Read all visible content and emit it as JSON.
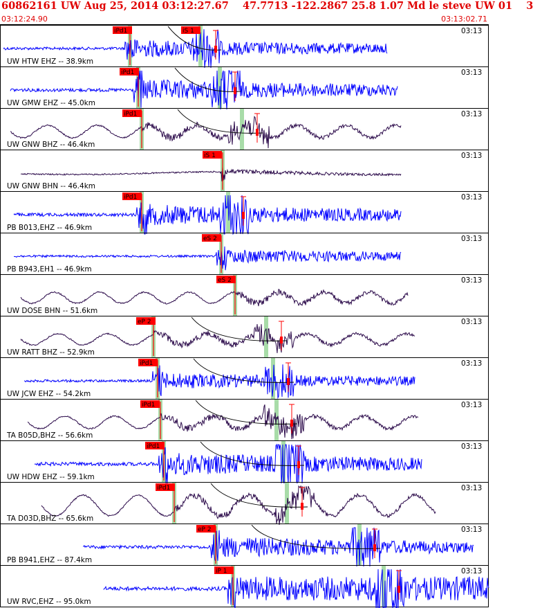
{
  "header": {
    "title": "60862161 UW Aug 25, 2014 03:12:27.67    47.7713 -122.2867 25.8 1.07 Md le steve UW 01    3",
    "start_time": "03:12:24.90",
    "end_time": "03:13:02.71"
  },
  "colors": {
    "header_text": "#e00000",
    "trace_blue": "#0000ff",
    "trace_dark": "#2b0a4a",
    "pick": "#ff0000",
    "window": "#a8dca8",
    "curve": "#000000"
  },
  "chart_data": {
    "type": "line",
    "title": "60862161 UW Aug 25, 2014 03:12:27.67    47.7713 -122.2867 25.8 1.07 Md le steve UW 01    3",
    "x_start": "03:12:24.90",
    "x_end": "03:13:02.71",
    "time_marker": "03:13",
    "traces": [
      {
        "label": "UW HTW EHZ -- 38.9km",
        "color": "blue",
        "pick": "iPd1",
        "s_pick": "iS 1"
      },
      {
        "label": "UW GMW EHZ -- 45.0km",
        "color": "blue",
        "pick": "iPd1",
        "s_pick": ""
      },
      {
        "label": "UW GNW BHZ -- 46.4km",
        "color": "dark",
        "pick": "iPd1",
        "s_pick": ""
      },
      {
        "label": "UW GNW BHN -- 46.4km",
        "color": "dark",
        "pick": "iS 1",
        "s_pick": ""
      },
      {
        "label": "PB B013,EHZ -- 46.9km",
        "color": "blue",
        "pick": "iPd1",
        "s_pick": ""
      },
      {
        "label": "PB B943,EH1 -- 46.9km",
        "color": "blue",
        "pick": "eS 2",
        "s_pick": ""
      },
      {
        "label": "UW DOSE BHN -- 51.6km",
        "color": "dark",
        "pick": "eS 2",
        "s_pick": ""
      },
      {
        "label": "UW RATT BHZ -- 52.9km",
        "color": "dark",
        "pick": "eP 2",
        "s_pick": ""
      },
      {
        "label": "UW JCW EHZ -- 54.2km",
        "color": "blue",
        "pick": "iPd1",
        "s_pick": ""
      },
      {
        "label": "TA B05D,BHZ -- 56.6km",
        "color": "dark",
        "pick": "iPd1",
        "s_pick": ""
      },
      {
        "label": "UW HDW EHZ -- 59.1km",
        "color": "blue",
        "pick": "iPd1",
        "s_pick": ""
      },
      {
        "label": "TA D03D,BHZ -- 65.6km",
        "color": "dark",
        "pick": "iPd1",
        "s_pick": ""
      },
      {
        "label": "PB B941,EHZ -- 87.4km",
        "color": "blue",
        "pick": "eP 2",
        "s_pick": ""
      },
      {
        "label": "UW RVC,EHZ -- 95.0km",
        "color": "blue",
        "pick": "iP 1",
        "s_pick": ""
      }
    ]
  }
}
